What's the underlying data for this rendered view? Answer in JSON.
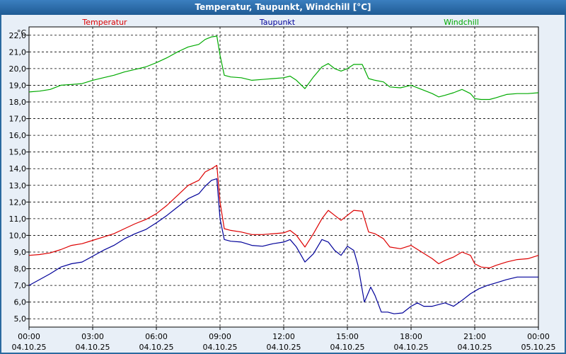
{
  "title": "Temperatur, Taupunkt, Windchill [°C]",
  "chart_data": {
    "type": "line",
    "title": "Temperatur, Taupunkt, Windchill [°C]",
    "yunit": "°C",
    "ylim": [
      4.5,
      22.5
    ],
    "yticks": [
      "5,0",
      "6,0",
      "7,0",
      "8,0",
      "9,0",
      "10,0",
      "11,0",
      "12,0",
      "13,0",
      "14,0",
      "15,0",
      "16,0",
      "17,0",
      "18,0",
      "19,0",
      "20,0",
      "21,0",
      "22,0"
    ],
    "xlim": [
      0,
      24
    ],
    "xticks": [
      {
        "x": 0,
        "time": "00:00",
        "date": "04.10.25"
      },
      {
        "x": 3,
        "time": "03:00",
        "date": "04.10.25"
      },
      {
        "x": 6,
        "time": "06:00",
        "date": "04.10.25"
      },
      {
        "x": 9,
        "time": "09:00",
        "date": "04.10.25"
      },
      {
        "x": 12,
        "time": "12:00",
        "date": "04.10.25"
      },
      {
        "x": 15,
        "time": "15:00",
        "date": "04.10.25"
      },
      {
        "x": 18,
        "time": "18:00",
        "date": "04.10.25"
      },
      {
        "x": 21,
        "time": "21:00",
        "date": "04.10.25"
      },
      {
        "x": 24,
        "time": "00:00",
        "date": "05.10.25"
      }
    ],
    "grid": true,
    "series": [
      {
        "name": "Temperatur",
        "color": "#dd0000",
        "points": [
          [
            0,
            8.8
          ],
          [
            0.5,
            8.85
          ],
          [
            1,
            8.95
          ],
          [
            1.5,
            9.15
          ],
          [
            2,
            9.4
          ],
          [
            2.5,
            9.5
          ],
          [
            3,
            9.7
          ],
          [
            3.5,
            9.9
          ],
          [
            4,
            10.1
          ],
          [
            4.5,
            10.4
          ],
          [
            5,
            10.7
          ],
          [
            5.5,
            10.95
          ],
          [
            6,
            11.3
          ],
          [
            6.5,
            11.8
          ],
          [
            7,
            12.4
          ],
          [
            7.5,
            13.0
          ],
          [
            8,
            13.3
          ],
          [
            8.3,
            13.8
          ],
          [
            8.6,
            14.0
          ],
          [
            8.85,
            14.2
          ],
          [
            9.0,
            12.0
          ],
          [
            9.2,
            10.4
          ],
          [
            9.5,
            10.3
          ],
          [
            10,
            10.2
          ],
          [
            10.5,
            10.05
          ],
          [
            11,
            10.05
          ],
          [
            11.5,
            10.1
          ],
          [
            12,
            10.15
          ],
          [
            12.3,
            10.3
          ],
          [
            12.6,
            10.0
          ],
          [
            13,
            9.3
          ],
          [
            13.4,
            10.1
          ],
          [
            13.8,
            11.0
          ],
          [
            14.1,
            11.5
          ],
          [
            14.4,
            11.2
          ],
          [
            14.7,
            10.9
          ],
          [
            15,
            11.2
          ],
          [
            15.3,
            11.5
          ],
          [
            15.7,
            11.45
          ],
          [
            16,
            10.2
          ],
          [
            16.3,
            10.1
          ],
          [
            16.7,
            9.8
          ],
          [
            17,
            9.3
          ],
          [
            17.5,
            9.2
          ],
          [
            18,
            9.4
          ],
          [
            18.5,
            9.0
          ],
          [
            19,
            8.6
          ],
          [
            19.3,
            8.3
          ],
          [
            19.6,
            8.5
          ],
          [
            20,
            8.7
          ],
          [
            20.4,
            9.0
          ],
          [
            20.8,
            8.8
          ],
          [
            21,
            8.3
          ],
          [
            21.3,
            8.1
          ],
          [
            21.7,
            8.05
          ],
          [
            22,
            8.2
          ],
          [
            22.5,
            8.4
          ],
          [
            23,
            8.55
          ],
          [
            23.5,
            8.6
          ],
          [
            24,
            8.8
          ]
        ]
      },
      {
        "name": "Taupunkt",
        "color": "#000099",
        "points": [
          [
            0,
            7.0
          ],
          [
            0.5,
            7.35
          ],
          [
            1,
            7.7
          ],
          [
            1.5,
            8.1
          ],
          [
            2,
            8.3
          ],
          [
            2.5,
            8.4
          ],
          [
            3,
            8.75
          ],
          [
            3.5,
            9.1
          ],
          [
            4,
            9.4
          ],
          [
            4.5,
            9.8
          ],
          [
            5,
            10.1
          ],
          [
            5.5,
            10.35
          ],
          [
            6,
            10.75
          ],
          [
            6.5,
            11.2
          ],
          [
            7,
            11.7
          ],
          [
            7.5,
            12.2
          ],
          [
            8,
            12.5
          ],
          [
            8.3,
            12.95
          ],
          [
            8.6,
            13.3
          ],
          [
            8.85,
            13.4
          ],
          [
            9.0,
            11.0
          ],
          [
            9.2,
            9.75
          ],
          [
            9.5,
            9.65
          ],
          [
            10,
            9.6
          ],
          [
            10.5,
            9.4
          ],
          [
            11,
            9.35
          ],
          [
            11.5,
            9.5
          ],
          [
            12,
            9.6
          ],
          [
            12.3,
            9.75
          ],
          [
            12.6,
            9.3
          ],
          [
            13,
            8.4
          ],
          [
            13.4,
            8.9
          ],
          [
            13.8,
            9.75
          ],
          [
            14.1,
            9.6
          ],
          [
            14.4,
            9.1
          ],
          [
            14.7,
            8.8
          ],
          [
            15,
            9.35
          ],
          [
            15.3,
            9.1
          ],
          [
            15.5,
            8.2
          ],
          [
            15.8,
            6.0
          ],
          [
            16.1,
            6.9
          ],
          [
            16.3,
            6.4
          ],
          [
            16.6,
            5.4
          ],
          [
            16.9,
            5.4
          ],
          [
            17.2,
            5.3
          ],
          [
            17.6,
            5.35
          ],
          [
            18,
            5.75
          ],
          [
            18.3,
            5.95
          ],
          [
            18.6,
            5.75
          ],
          [
            19,
            5.75
          ],
          [
            19.3,
            5.85
          ],
          [
            19.6,
            5.95
          ],
          [
            20,
            5.75
          ],
          [
            20.4,
            6.1
          ],
          [
            20.8,
            6.5
          ],
          [
            21.2,
            6.8
          ],
          [
            21.6,
            7.0
          ],
          [
            22,
            7.15
          ],
          [
            22.5,
            7.35
          ],
          [
            23,
            7.5
          ],
          [
            23.5,
            7.5
          ],
          [
            24,
            7.5
          ]
        ]
      },
      {
        "name": "Windchill",
        "color": "#00aa00",
        "points": [
          [
            0,
            18.6
          ],
          [
            0.5,
            18.65
          ],
          [
            1,
            18.75
          ],
          [
            1.5,
            19.0
          ],
          [
            2,
            19.05
          ],
          [
            2.5,
            19.1
          ],
          [
            3,
            19.3
          ],
          [
            3.5,
            19.45
          ],
          [
            4,
            19.6
          ],
          [
            4.5,
            19.8
          ],
          [
            5,
            19.95
          ],
          [
            5.5,
            20.1
          ],
          [
            6,
            20.35
          ],
          [
            6.5,
            20.65
          ],
          [
            7,
            21.0
          ],
          [
            7.5,
            21.3
          ],
          [
            8,
            21.45
          ],
          [
            8.3,
            21.75
          ],
          [
            8.6,
            21.9
          ],
          [
            8.85,
            21.95
          ],
          [
            9.0,
            20.8
          ],
          [
            9.2,
            19.6
          ],
          [
            9.5,
            19.5
          ],
          [
            10,
            19.45
          ],
          [
            10.5,
            19.3
          ],
          [
            11,
            19.35
          ],
          [
            11.5,
            19.4
          ],
          [
            12,
            19.45
          ],
          [
            12.3,
            19.55
          ],
          [
            12.6,
            19.3
          ],
          [
            13,
            18.8
          ],
          [
            13.4,
            19.5
          ],
          [
            13.8,
            20.1
          ],
          [
            14.1,
            20.3
          ],
          [
            14.4,
            20.0
          ],
          [
            14.7,
            19.85
          ],
          [
            15,
            20.0
          ],
          [
            15.3,
            20.25
          ],
          [
            15.7,
            20.25
          ],
          [
            16,
            19.4
          ],
          [
            16.3,
            19.3
          ],
          [
            16.7,
            19.2
          ],
          [
            17,
            18.9
          ],
          [
            17.5,
            18.85
          ],
          [
            18,
            19.0
          ],
          [
            18.5,
            18.75
          ],
          [
            19,
            18.5
          ],
          [
            19.3,
            18.3
          ],
          [
            19.6,
            18.4
          ],
          [
            20,
            18.55
          ],
          [
            20.4,
            18.75
          ],
          [
            20.8,
            18.5
          ],
          [
            21,
            18.2
          ],
          [
            21.3,
            18.15
          ],
          [
            21.7,
            18.15
          ],
          [
            22,
            18.25
          ],
          [
            22.5,
            18.45
          ],
          [
            23,
            18.5
          ],
          [
            23.5,
            18.5
          ],
          [
            24,
            18.55
          ]
        ]
      }
    ]
  }
}
